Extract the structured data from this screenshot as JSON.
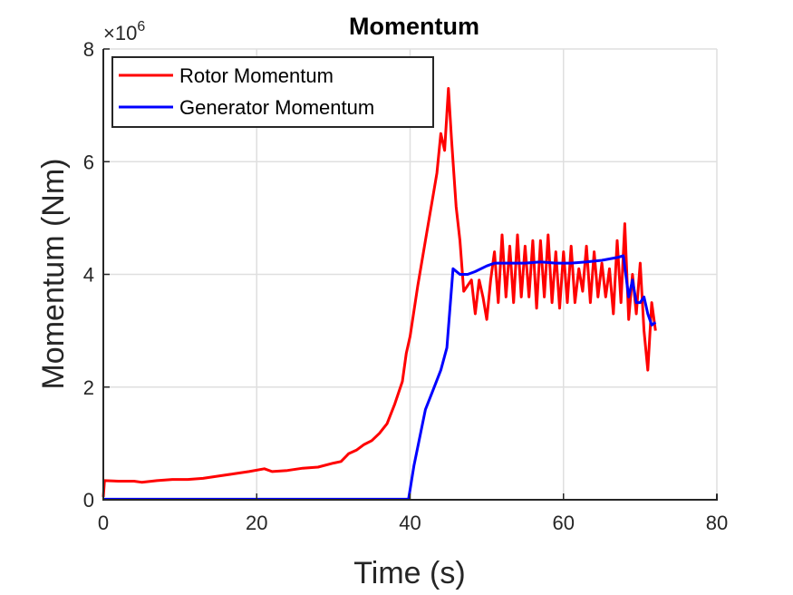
{
  "chart_data": {
    "type": "line",
    "title": "Momentum",
    "xlabel": "Time (s)",
    "ylabel": "Momentum (Nm)",
    "y_multiplier_base": "×10",
    "y_multiplier_exp": "6",
    "xlim": [
      0,
      80
    ],
    "ylim": [
      0,
      8
    ],
    "xticks": [
      0,
      20,
      40,
      60,
      80
    ],
    "yticks": [
      0,
      2,
      4,
      6,
      8
    ],
    "xtick_labels": [
      "0",
      "20",
      "40",
      "60",
      "80"
    ],
    "ytick_labels": [
      "0",
      "2",
      "4",
      "6",
      "8"
    ],
    "grid": true,
    "legend_position": "top-left",
    "series": [
      {
        "name": "Rotor Momentum",
        "color": "#ff0000",
        "points": [
          [
            0,
            0.05
          ],
          [
            0.15,
            0.34
          ],
          [
            2,
            0.33
          ],
          [
            4,
            0.33
          ],
          [
            5,
            0.31
          ],
          [
            7,
            0.34
          ],
          [
            9,
            0.36
          ],
          [
            11,
            0.36
          ],
          [
            13,
            0.38
          ],
          [
            15,
            0.42
          ],
          [
            17,
            0.46
          ],
          [
            19,
            0.5
          ],
          [
            21,
            0.55
          ],
          [
            22,
            0.5
          ],
          [
            24,
            0.52
          ],
          [
            26,
            0.56
          ],
          [
            28,
            0.58
          ],
          [
            30,
            0.65
          ],
          [
            31,
            0.68
          ],
          [
            32,
            0.82
          ],
          [
            33,
            0.88
          ],
          [
            34,
            0.98
          ],
          [
            35,
            1.05
          ],
          [
            36,
            1.18
          ],
          [
            37,
            1.35
          ],
          [
            38,
            1.7
          ],
          [
            39,
            2.1
          ],
          [
            39.5,
            2.6
          ],
          [
            40,
            2.9
          ],
          [
            41,
            3.8
          ],
          [
            42,
            4.6
          ],
          [
            43,
            5.4
          ],
          [
            43.5,
            5.8
          ],
          [
            44,
            6.5
          ],
          [
            44.5,
            6.2
          ],
          [
            45,
            7.3
          ],
          [
            45.4,
            6.4
          ],
          [
            46,
            5.2
          ],
          [
            46.5,
            4.6
          ],
          [
            47,
            3.7
          ],
          [
            48,
            3.9
          ],
          [
            48.5,
            3.3
          ],
          [
            49,
            3.9
          ],
          [
            49.5,
            3.6
          ],
          [
            50,
            3.2
          ],
          [
            50.5,
            3.9
          ],
          [
            51,
            4.4
          ],
          [
            51.5,
            3.5
          ],
          [
            52,
            4.7
          ],
          [
            52.5,
            3.6
          ],
          [
            53,
            4.5
          ],
          [
            53.5,
            3.5
          ],
          [
            54,
            4.7
          ],
          [
            54.5,
            3.6
          ],
          [
            55,
            4.5
          ],
          [
            55.5,
            3.6
          ],
          [
            56,
            4.6
          ],
          [
            56.5,
            3.4
          ],
          [
            57,
            4.6
          ],
          [
            57.5,
            3.6
          ],
          [
            58,
            4.7
          ],
          [
            58.5,
            3.5
          ],
          [
            59,
            4.4
          ],
          [
            59.5,
            3.4
          ],
          [
            60,
            4.4
          ],
          [
            60.5,
            3.5
          ],
          [
            61,
            4.5
          ],
          [
            61.5,
            3.5
          ],
          [
            62,
            4.1
          ],
          [
            62.5,
            3.7
          ],
          [
            63,
            4.5
          ],
          [
            63.5,
            3.5
          ],
          [
            64,
            4.4
          ],
          [
            64.5,
            3.6
          ],
          [
            65,
            4.2
          ],
          [
            65.5,
            3.6
          ],
          [
            66,
            4.1
          ],
          [
            66.5,
            3.3
          ],
          [
            67,
            4.6
          ],
          [
            67.5,
            3.5
          ],
          [
            68,
            4.9
          ],
          [
            68.5,
            3.2
          ],
          [
            69,
            4.0
          ],
          [
            69.5,
            3.3
          ],
          [
            70,
            4.2
          ],
          [
            70.5,
            3.0
          ],
          [
            71,
            2.3
          ],
          [
            71.5,
            3.5
          ],
          [
            72,
            3.0
          ]
        ]
      },
      {
        "name": "Generator Momentum",
        "color": "#0000ff",
        "points": [
          [
            0,
            0.01
          ],
          [
            39.8,
            0.01
          ],
          [
            40.5,
            0.6
          ],
          [
            42,
            1.6
          ],
          [
            43,
            1.95
          ],
          [
            44,
            2.3
          ],
          [
            44.8,
            2.7
          ],
          [
            45.6,
            4.1
          ],
          [
            46.5,
            4.0
          ],
          [
            47.5,
            4.0
          ],
          [
            48.5,
            4.05
          ],
          [
            50,
            4.15
          ],
          [
            51,
            4.2
          ],
          [
            53,
            4.2
          ],
          [
            55,
            4.2
          ],
          [
            57,
            4.22
          ],
          [
            59,
            4.2
          ],
          [
            61,
            4.2
          ],
          [
            63,
            4.22
          ],
          [
            65,
            4.25
          ],
          [
            67,
            4.3
          ],
          [
            67.8,
            4.33
          ],
          [
            68.5,
            3.6
          ],
          [
            69,
            3.9
          ],
          [
            69.5,
            3.5
          ],
          [
            70,
            3.5
          ],
          [
            70.5,
            3.6
          ],
          [
            71,
            3.3
          ],
          [
            71.5,
            3.1
          ],
          [
            72,
            3.15
          ]
        ]
      }
    ]
  }
}
